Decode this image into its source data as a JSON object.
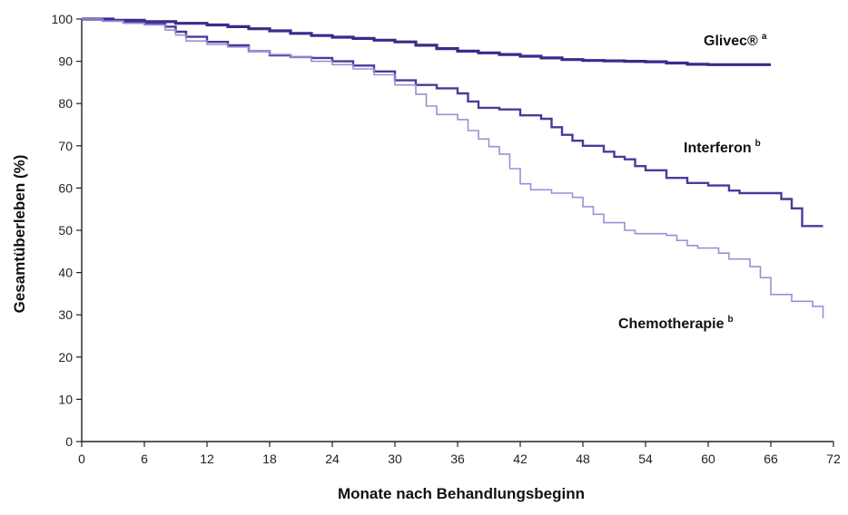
{
  "chart_data": {
    "type": "line",
    "xlabel": "Monate nach Behandlungsbeginn",
    "ylabel": "Gesamtüberleben (%)",
    "xlim": [
      0,
      72
    ],
    "ylim": [
      0,
      100
    ],
    "xticks": [
      0,
      6,
      12,
      18,
      24,
      30,
      36,
      42,
      48,
      54,
      60,
      66,
      72
    ],
    "yticks": [
      0,
      10,
      20,
      30,
      40,
      50,
      60,
      70,
      80,
      90,
      100
    ],
    "grid": false,
    "legend": "inline labels at right end of each curve",
    "series": [
      {
        "name": "Glivec®",
        "superscript": "a",
        "color": "#3b2a8c",
        "step": true,
        "points": [
          [
            0,
            100
          ],
          [
            3,
            99.7
          ],
          [
            6,
            99.4
          ],
          [
            9,
            99.0
          ],
          [
            12,
            98.6
          ],
          [
            14,
            98.2
          ],
          [
            16,
            97.7
          ],
          [
            18,
            97.2
          ],
          [
            20,
            96.6
          ],
          [
            22,
            96.1
          ],
          [
            24,
            95.7
          ],
          [
            26,
            95.4
          ],
          [
            28,
            95.0
          ],
          [
            30,
            94.6
          ],
          [
            32,
            93.8
          ],
          [
            34,
            93.0
          ],
          [
            36,
            92.4
          ],
          [
            38,
            92.0
          ],
          [
            40,
            91.6
          ],
          [
            42,
            91.2
          ],
          [
            44,
            90.8
          ],
          [
            46,
            90.4
          ],
          [
            48,
            90.2
          ],
          [
            50,
            90.1
          ],
          [
            52,
            90.0
          ],
          [
            54,
            89.9
          ],
          [
            56,
            89.6
          ],
          [
            58,
            89.3
          ],
          [
            60,
            89.2
          ],
          [
            62,
            89.2
          ],
          [
            64,
            89.2
          ],
          [
            66,
            89.2
          ]
        ]
      },
      {
        "name": "Interferon",
        "superscript": "b",
        "color": "#4a3a9c",
        "step": true,
        "points": [
          [
            0,
            100
          ],
          [
            2,
            99.6
          ],
          [
            4,
            99.3
          ],
          [
            6,
            99.0
          ],
          [
            8,
            98.2
          ],
          [
            9,
            97.0
          ],
          [
            10,
            95.8
          ],
          [
            12,
            94.6
          ],
          [
            14,
            93.8
          ],
          [
            16,
            92.4
          ],
          [
            18,
            91.4
          ],
          [
            20,
            91.0
          ],
          [
            22,
            90.8
          ],
          [
            24,
            90.0
          ],
          [
            26,
            89.0
          ],
          [
            28,
            87.6
          ],
          [
            30,
            85.5
          ],
          [
            32,
            84.4
          ],
          [
            34,
            83.6
          ],
          [
            36,
            82.4
          ],
          [
            37,
            80.5
          ],
          [
            38,
            79.0
          ],
          [
            40,
            78.6
          ],
          [
            42,
            77.2
          ],
          [
            44,
            76.4
          ],
          [
            45,
            74.4
          ],
          [
            46,
            72.6
          ],
          [
            47,
            71.2
          ],
          [
            48,
            70.0
          ],
          [
            50,
            68.6
          ],
          [
            51,
            67.4
          ],
          [
            52,
            66.8
          ],
          [
            53,
            65.2
          ],
          [
            54,
            64.2
          ],
          [
            56,
            62.4
          ],
          [
            58,
            61.2
          ],
          [
            60,
            60.6
          ],
          [
            62,
            59.4
          ],
          [
            63,
            58.8
          ],
          [
            66,
            58.8
          ],
          [
            67,
            57.4
          ],
          [
            68,
            55.2
          ],
          [
            69,
            51.0
          ],
          [
            71,
            51.0
          ]
        ]
      },
      {
        "name": "Chemotherapie",
        "superscript": "b",
        "color": "#9a90d6",
        "step": true,
        "points": [
          [
            0,
            100
          ],
          [
            2,
            99.5
          ],
          [
            4,
            99.0
          ],
          [
            6,
            98.6
          ],
          [
            8,
            97.4
          ],
          [
            9,
            96.2
          ],
          [
            10,
            94.8
          ],
          [
            12,
            94.0
          ],
          [
            14,
            93.4
          ],
          [
            16,
            92.4
          ],
          [
            18,
            91.6
          ],
          [
            20,
            91.0
          ],
          [
            22,
            90.0
          ],
          [
            24,
            89.2
          ],
          [
            26,
            88.2
          ],
          [
            28,
            86.8
          ],
          [
            30,
            84.4
          ],
          [
            32,
            82.2
          ],
          [
            33,
            79.4
          ],
          [
            34,
            77.4
          ],
          [
            36,
            76.2
          ],
          [
            37,
            73.6
          ],
          [
            38,
            71.6
          ],
          [
            39,
            69.8
          ],
          [
            40,
            68.0
          ],
          [
            41,
            64.6
          ],
          [
            42,
            61.0
          ],
          [
            43,
            59.6
          ],
          [
            45,
            58.8
          ],
          [
            47,
            57.8
          ],
          [
            48,
            55.6
          ],
          [
            49,
            53.8
          ],
          [
            50,
            51.8
          ],
          [
            52,
            50.0
          ],
          [
            53,
            49.2
          ],
          [
            56,
            48.8
          ],
          [
            57,
            47.6
          ],
          [
            58,
            46.4
          ],
          [
            59,
            45.8
          ],
          [
            61,
            44.6
          ],
          [
            62,
            43.2
          ],
          [
            64,
            41.4
          ],
          [
            65,
            38.8
          ],
          [
            66,
            34.8
          ],
          [
            68,
            33.2
          ],
          [
            70,
            32.0
          ],
          [
            71,
            29.2
          ]
        ]
      }
    ]
  }
}
